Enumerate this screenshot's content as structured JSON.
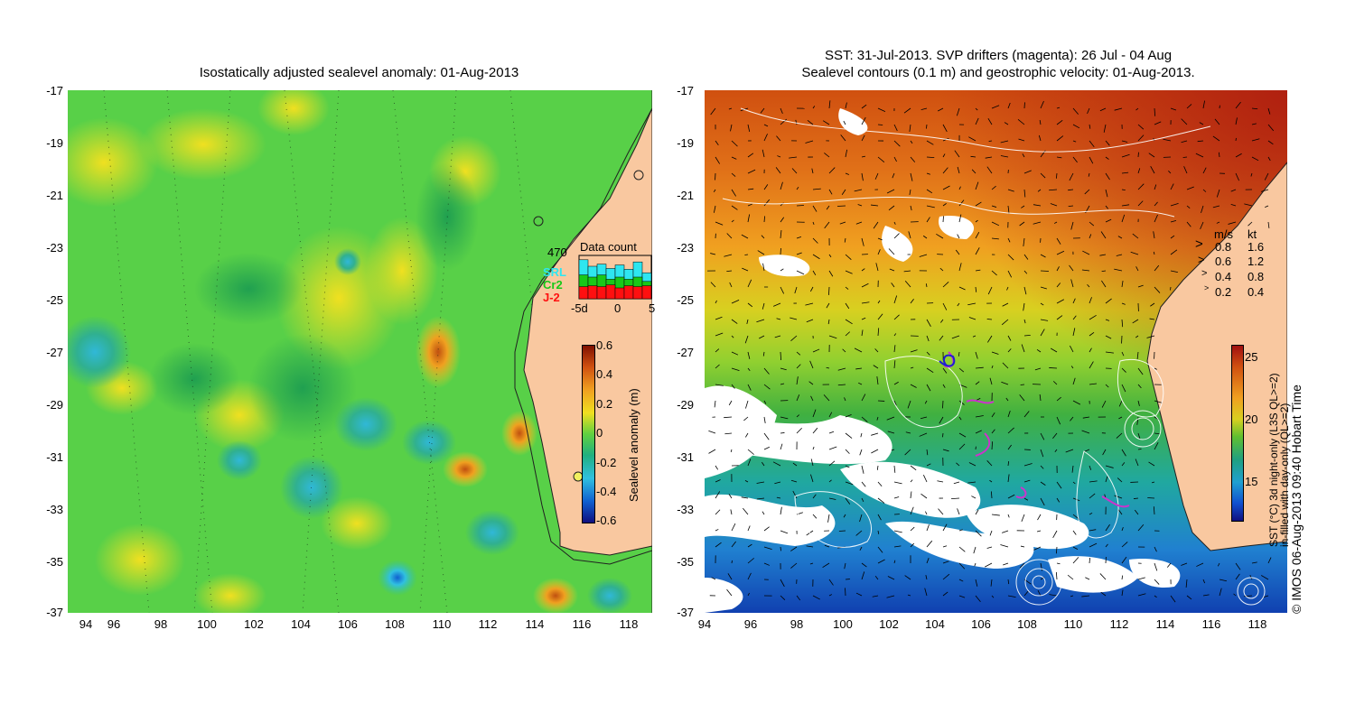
{
  "left_panel": {
    "title": "Isostatically adjusted sealevel anomaly: 01-Aug-2013",
    "y_ticks": [
      "-17",
      "-19",
      "-21",
      "-23",
      "-25",
      "-27",
      "-29",
      "-31",
      "-33",
      "-35",
      "-37"
    ],
    "x_ticks": [
      "94",
      "96",
      "98",
      "100",
      "102",
      "104",
      "106",
      "108",
      "110",
      "112",
      "114",
      "116",
      "118"
    ],
    "colorbar": {
      "label": "Sealevel anomaly (m)",
      "ticks": [
        "0.6",
        "0.4",
        "0.2",
        "0",
        "-0.2",
        "-0.4",
        "-0.6"
      ]
    },
    "data_count": {
      "title": "Data count",
      "max_label": "470",
      "satellites": [
        {
          "name": "SRL",
          "color": "#2ee6f0"
        },
        {
          "name": "Cr2",
          "color": "#18c818"
        },
        {
          "name": "J-2",
          "color": "#ff1010"
        }
      ],
      "x_ticks": [
        "-5d",
        "0",
        "5"
      ],
      "bars_total": [
        0.9,
        0.75,
        0.8,
        0.7,
        0.78,
        0.68,
        0.85,
        0.6
      ],
      "bars_cr2": [
        0.55,
        0.5,
        0.55,
        0.45,
        0.5,
        0.45,
        0.5,
        0.4
      ],
      "bars_j2": [
        0.28,
        0.3,
        0.28,
        0.32,
        0.25,
        0.3,
        0.28,
        0.3
      ]
    }
  },
  "right_panel": {
    "title_line1": "SST: 31-Jul-2013. SVP drifters (magenta): 26 Jul - 04 Aug",
    "title_line2": "Sealevel contours (0.1 m) and geostrophic velocity: 01-Aug-2013.",
    "y_ticks": [
      "-17",
      "-19",
      "-21",
      "-23",
      "-25",
      "-27",
      "-29",
      "-31",
      "-33",
      "-35",
      "-37"
    ],
    "x_ticks": [
      "94",
      "96",
      "98",
      "100",
      "102",
      "104",
      "106",
      "108",
      "110",
      "112",
      "114",
      "116",
      "118"
    ],
    "velocity_legend": {
      "header_ms": "m/s",
      "header_kt": "kt",
      "rows": [
        {
          "ms": "0.8",
          "kt": "1.6"
        },
        {
          "ms": "0.6",
          "kt": "1.2"
        },
        {
          "ms": "0.4",
          "kt": "0.8"
        },
        {
          "ms": "0.2",
          "kt": "0.4"
        }
      ]
    },
    "colorbar": {
      "label_line1": "SST (°C) 3d night-only (L3S QL>=2)",
      "label_line2": "in-filled with day-only (QL>=2)",
      "ticks": [
        "25",
        "20",
        "15"
      ]
    }
  },
  "credit": "© IMOS 06-Aug-2013 09:40 Hobart Time",
  "colors": {
    "land": "#f9c8a0",
    "sst_warm": "#d05010",
    "sst_cool": "#1050d0",
    "sla_background": "#58d048",
    "contour": "#ffffff",
    "drifter": "#cc33cc"
  }
}
